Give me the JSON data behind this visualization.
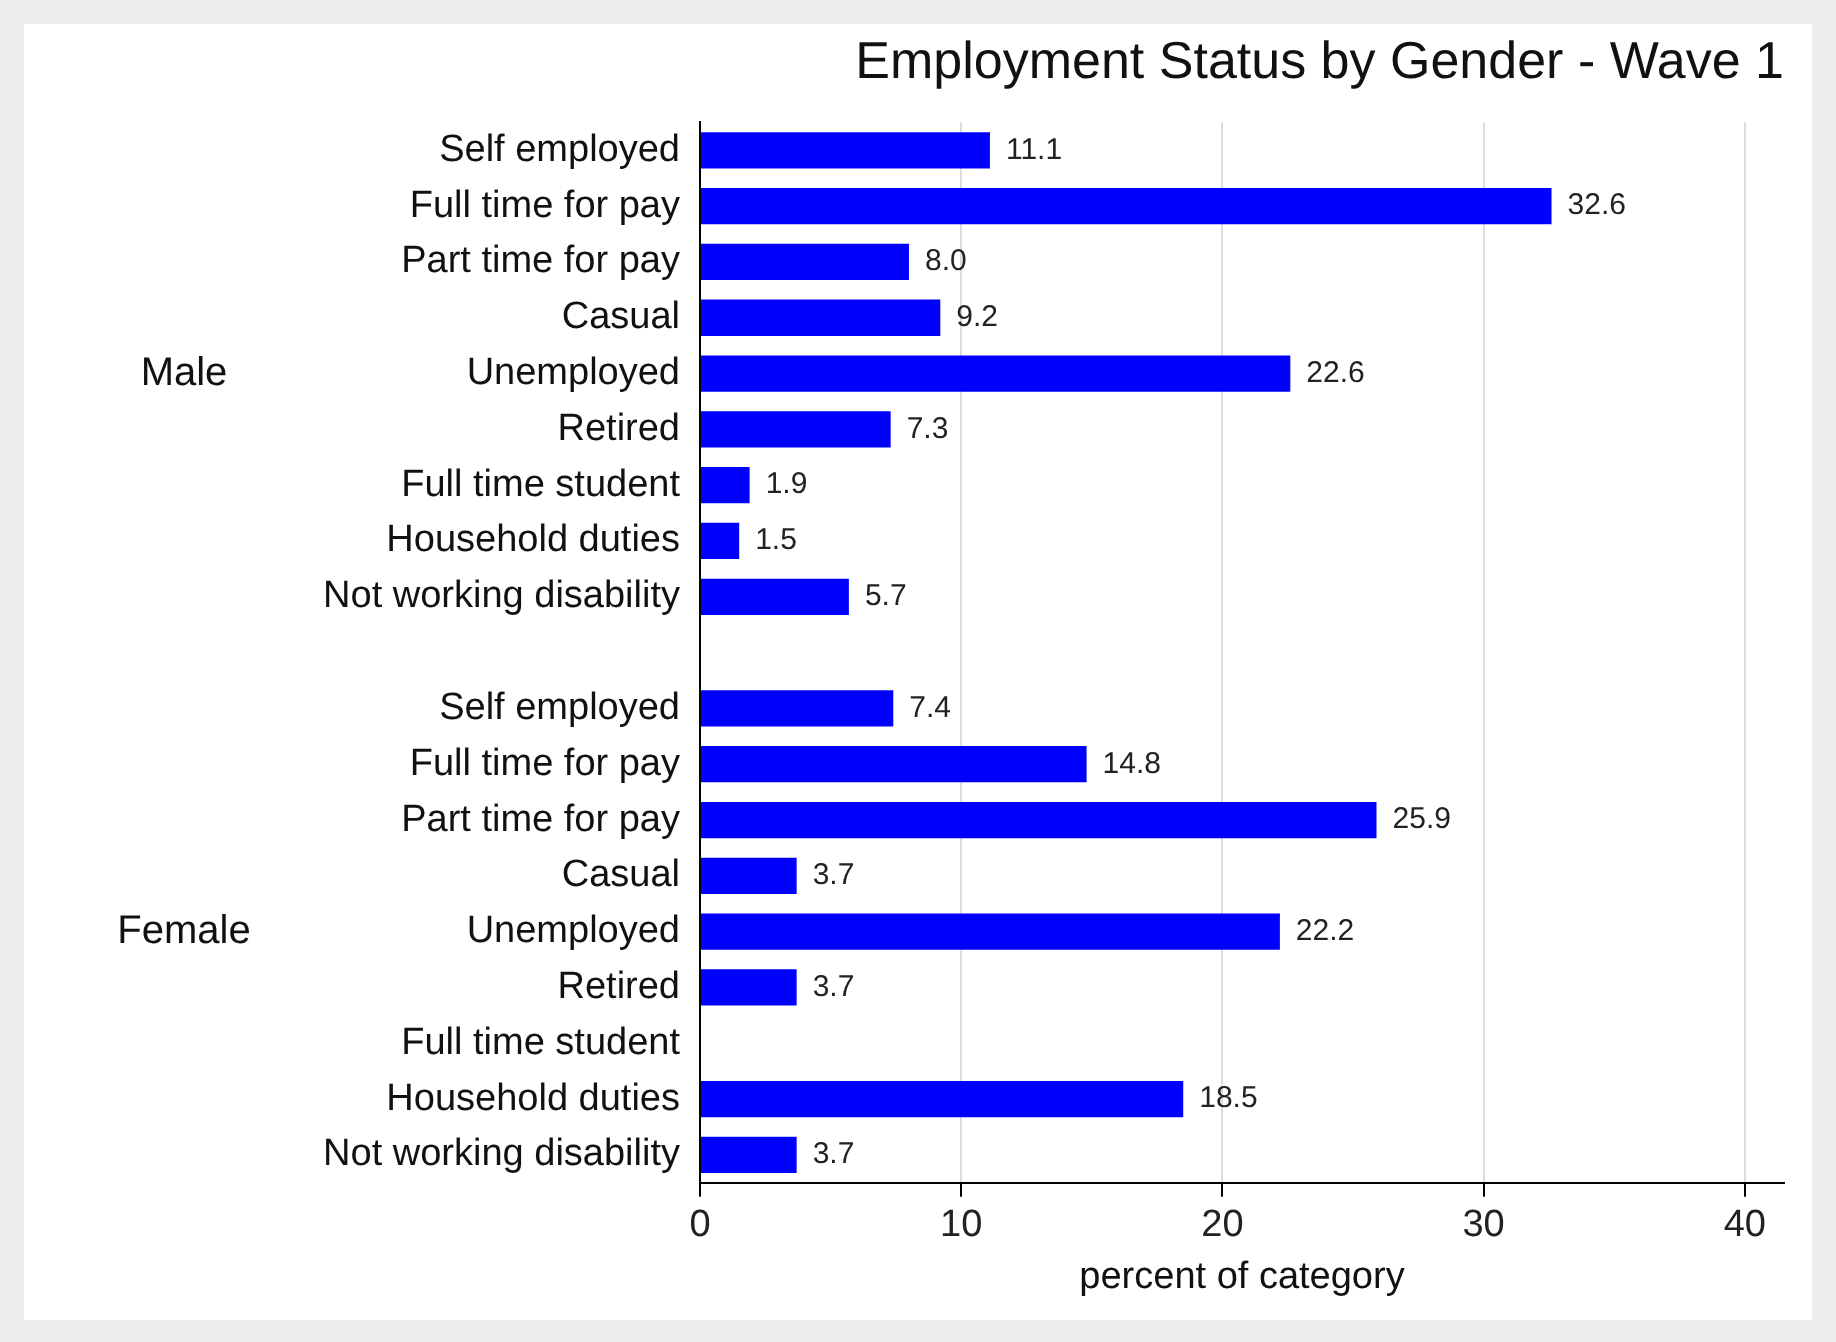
{
  "chart_data": {
    "type": "bar",
    "orientation": "horizontal",
    "title": "Employment Status by Gender - Wave 1",
    "xlabel": "percent of category",
    "categories": [
      "Self employed",
      "Full time for pay",
      "Part time for pay",
      "Casual",
      "Unemployed",
      "Retired",
      "Full time student",
      "Household duties",
      "Not working disability",
      null,
      "Self employed",
      "Full time for pay",
      "Part time for pay",
      "Casual",
      "Unemployed",
      "Retired",
      "Full time student",
      "Household duties",
      "Not working disability"
    ],
    "series": [
      {
        "color": "#0000ff",
        "values": [
          11.1,
          32.6,
          8.0,
          9.2,
          22.6,
          7.3,
          1.9,
          1.5,
          5.7,
          null,
          7.4,
          14.8,
          25.9,
          3.7,
          22.2,
          3.7,
          null,
          18.5,
          3.7
        ],
        "value_labels": [
          "11.1",
          "32.6",
          "8.0",
          "9.2",
          "22.6",
          "7.3",
          "1.9",
          "1.5",
          "5.7",
          null,
          "7.4",
          "14.8",
          "25.9",
          "3.7",
          "22.2",
          "3.7",
          null,
          "18.5",
          "3.7"
        ]
      }
    ],
    "annotations": [
      "Male",
      "Female"
    ],
    "xlim": [
      0,
      41.5
    ],
    "xticks": [
      0,
      10,
      20,
      30,
      40
    ],
    "grid": "x",
    "legend": false
  }
}
